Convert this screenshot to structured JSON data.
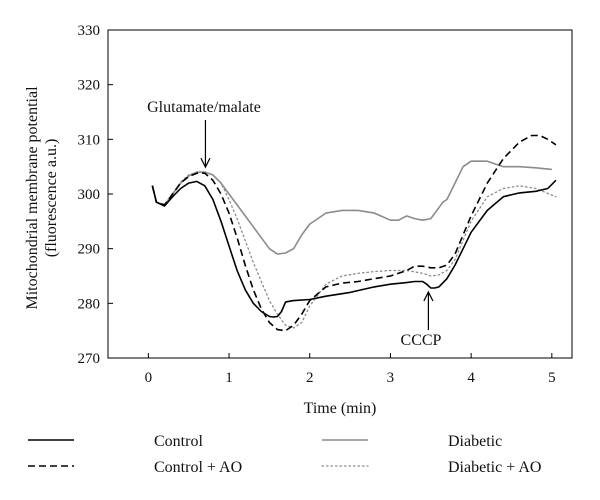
{
  "chart_data": {
    "type": "line",
    "title": "",
    "xlabel": "Time (min)",
    "ylabel": [
      "Mitochondrial membrane potential",
      "(fluorescence a.u.)"
    ],
    "xlim": [
      -0.5,
      5.25
    ],
    "ylim": [
      270,
      330
    ],
    "xticks": [
      0,
      1,
      2,
      3,
      4,
      5
    ],
    "yticks": [
      270,
      280,
      290,
      300,
      310,
      320,
      330
    ],
    "grid": false,
    "legend": "bottom",
    "series": [
      {
        "name": "Control",
        "style": "solid",
        "color": "#000000",
        "x": [
          0.05,
          0.1,
          0.2,
          0.3,
          0.4,
          0.5,
          0.6,
          0.7,
          0.8,
          0.9,
          1.0,
          1.1,
          1.2,
          1.3,
          1.4,
          1.5,
          1.55,
          1.6,
          1.65,
          1.7,
          1.72,
          1.8,
          2.0,
          2.2,
          2.5,
          2.8,
          3.0,
          3.2,
          3.3,
          3.4,
          3.45,
          3.5,
          3.55,
          3.6,
          3.7,
          3.8,
          3.9,
          4.0,
          4.2,
          4.4,
          4.6,
          4.8,
          4.95,
          5.05
        ],
        "y": [
          301.5,
          298.5,
          297.8,
          299.5,
          301.0,
          302.0,
          302.3,
          301.5,
          299.0,
          295.0,
          290.5,
          286.0,
          282.5,
          280.0,
          278.5,
          277.6,
          277.5,
          277.6,
          278.5,
          280.2,
          280.3,
          280.5,
          280.7,
          281.3,
          282.0,
          283.0,
          283.5,
          283.8,
          284.0,
          284.0,
          283.5,
          282.8,
          282.8,
          283.0,
          284.5,
          287.0,
          290.0,
          293.0,
          297.0,
          299.5,
          300.2,
          300.5,
          301.0,
          302.5
        ]
      },
      {
        "name": "Control + AO",
        "style": "dashed",
        "color": "#000000",
        "x": [
          0.05,
          0.1,
          0.2,
          0.3,
          0.4,
          0.5,
          0.6,
          0.7,
          0.8,
          0.9,
          1.0,
          1.1,
          1.2,
          1.3,
          1.4,
          1.5,
          1.6,
          1.7,
          1.8,
          1.9,
          2.0,
          2.2,
          2.4,
          2.6,
          2.8,
          3.0,
          3.2,
          3.3,
          3.4,
          3.5,
          3.6,
          3.7,
          3.8,
          4.0,
          4.2,
          4.4,
          4.6,
          4.75,
          4.85,
          4.95,
          5.05
        ],
        "y": [
          301.5,
          298.5,
          298.0,
          300.0,
          302.0,
          303.2,
          303.8,
          303.8,
          302.5,
          300.0,
          296.5,
          292.0,
          287.0,
          282.5,
          279.0,
          276.5,
          275.2,
          275.0,
          276.0,
          278.0,
          280.5,
          283.0,
          283.7,
          284.0,
          284.5,
          285.0,
          286.0,
          286.8,
          286.8,
          286.5,
          286.5,
          287.0,
          289.0,
          296.0,
          302.0,
          306.5,
          309.5,
          310.7,
          310.7,
          310.0,
          309.0
        ]
      },
      {
        "name": "Diabetic",
        "style": "solid",
        "color": "#8c8c8c",
        "x": [
          0.05,
          0.1,
          0.2,
          0.3,
          0.4,
          0.5,
          0.6,
          0.7,
          0.8,
          0.9,
          1.0,
          1.1,
          1.2,
          1.3,
          1.4,
          1.5,
          1.6,
          1.7,
          1.8,
          1.9,
          2.0,
          2.2,
          2.4,
          2.6,
          2.8,
          3.0,
          3.1,
          3.2,
          3.3,
          3.4,
          3.5,
          3.6,
          3.65,
          3.7,
          3.8,
          3.9,
          4.0,
          4.2,
          4.4,
          4.6,
          4.8,
          5.0
        ],
        "y": [
          301.5,
          298.5,
          298.0,
          300.0,
          302.0,
          303.3,
          304.0,
          304.0,
          303.5,
          302.0,
          300.0,
          298.0,
          296.0,
          294.0,
          292.0,
          290.0,
          289.0,
          289.2,
          290.0,
          292.5,
          294.5,
          296.5,
          297.0,
          297.0,
          296.5,
          295.2,
          295.2,
          296.0,
          295.5,
          295.2,
          295.5,
          297.5,
          298.5,
          299.0,
          302.0,
          305.0,
          306.0,
          306.0,
          305.0,
          305.0,
          304.8,
          304.5
        ]
      },
      {
        "name": "Diabetic + AO",
        "style": "dotted",
        "color": "#8c8c8c",
        "x": [
          0.05,
          0.1,
          0.2,
          0.3,
          0.4,
          0.5,
          0.6,
          0.7,
          0.8,
          0.9,
          1.0,
          1.1,
          1.2,
          1.3,
          1.4,
          1.5,
          1.6,
          1.7,
          1.8,
          1.9,
          2.0,
          2.2,
          2.4,
          2.6,
          2.8,
          3.0,
          3.2,
          3.4,
          3.5,
          3.6,
          3.7,
          3.8,
          4.0,
          4.2,
          4.4,
          4.6,
          4.8,
          5.05
        ],
        "y": [
          301.5,
          298.5,
          298.0,
          300.0,
          302.2,
          303.5,
          304.0,
          304.0,
          303.5,
          302.0,
          299.0,
          295.5,
          291.5,
          287.5,
          284.0,
          280.5,
          278.0,
          276.0,
          275.5,
          276.5,
          279.5,
          283.5,
          285.0,
          285.5,
          285.8,
          286.0,
          286.0,
          285.5,
          285.0,
          285.2,
          286.0,
          288.0,
          295.0,
          299.5,
          301.0,
          301.5,
          301.0,
          299.5
        ]
      }
    ],
    "annotations": [
      {
        "id": "glutamate",
        "text": "Glutamate/malate",
        "x": 0.72,
        "y": 304.0
      },
      {
        "id": "cccp",
        "text": "CCCP",
        "x": 3.52,
        "y": 283.0
      }
    ]
  }
}
